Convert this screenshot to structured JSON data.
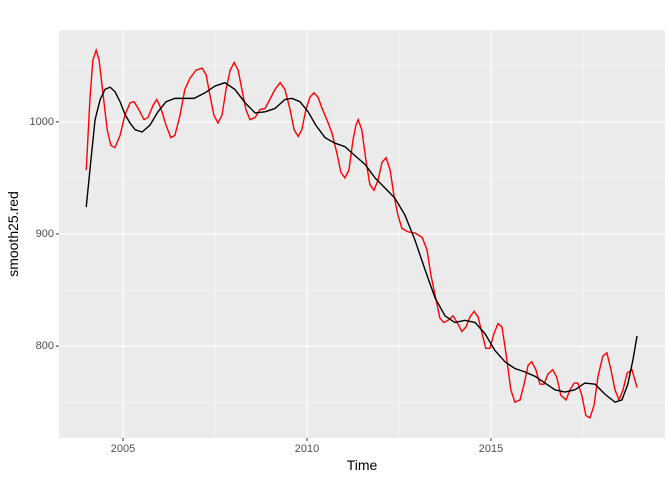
{
  "chart_data": {
    "type": "line",
    "x_label": "Time",
    "y_label": "smooth25.red",
    "xlim": [
      2003.26,
      2019.73
    ],
    "ylim": [
      718,
      1082
    ],
    "xticks": [
      2005,
      2010,
      2015
    ],
    "yticks": [
      800,
      900,
      1000
    ],
    "x_minor_ticks": [
      2002.5,
      2007.5,
      2012.5,
      2017.5
    ],
    "y_minor_ticks": [
      750,
      850,
      950,
      1050
    ],
    "grid": true,
    "background": "#ebebeb",
    "series": [
      {
        "color": "#ff0000",
        "x": [
          2004.0,
          2004.1,
          2004.18,
          2004.27,
          2004.35,
          2004.46,
          2004.57,
          2004.67,
          2004.78,
          2004.92,
          2005.05,
          2005.19,
          2005.3,
          2005.43,
          2005.57,
          2005.68,
          2005.82,
          2005.92,
          2006.03,
          2006.17,
          2006.3,
          2006.41,
          2006.55,
          2006.68,
          2006.82,
          2006.98,
          2007.15,
          2007.26,
          2007.36,
          2007.47,
          2007.58,
          2007.69,
          2007.8,
          2007.91,
          2008.02,
          2008.13,
          2008.23,
          2008.34,
          2008.45,
          2008.59,
          2008.72,
          2008.86,
          2008.99,
          2009.13,
          2009.27,
          2009.4,
          2009.54,
          2009.65,
          2009.76,
          2009.86,
          2009.97,
          2010.08,
          2010.19,
          2010.3,
          2010.41,
          2010.54,
          2010.68,
          2010.82,
          2010.92,
          2011.03,
          2011.14,
          2011.25,
          2011.33,
          2011.39,
          2011.49,
          2011.6,
          2011.71,
          2011.82,
          2011.93,
          2012.04,
          2012.15,
          2012.26,
          2012.36,
          2012.47,
          2012.58,
          2012.74,
          2012.93,
          2013.13,
          2013.26,
          2013.37,
          2013.51,
          2013.61,
          2013.72,
          2013.83,
          2013.97,
          2014.08,
          2014.21,
          2014.32,
          2014.43,
          2014.54,
          2014.65,
          2014.76,
          2014.86,
          2014.97,
          2015.08,
          2015.19,
          2015.3,
          2015.41,
          2015.54,
          2015.65,
          2015.79,
          2015.9,
          2016.01,
          2016.11,
          2016.22,
          2016.33,
          2016.44,
          2016.55,
          2016.68,
          2016.79,
          2016.9,
          2017.04,
          2017.15,
          2017.26,
          2017.36,
          2017.47,
          2017.58,
          2017.69,
          2017.8,
          2017.91,
          2018.04,
          2018.15,
          2018.26,
          2018.37,
          2018.48,
          2018.59,
          2018.7,
          2018.83,
          2018.97
        ],
        "values": [
          957,
          1020,
          1055,
          1064,
          1055,
          1024,
          993,
          979,
          977,
          988,
          1006,
          1017,
          1018,
          1011,
          1002,
          1004,
          1015,
          1020,
          1012,
          997,
          986,
          988,
          1006,
          1029,
          1039,
          1046,
          1048,
          1042,
          1024,
          1006,
          999,
          1006,
          1029,
          1046,
          1053,
          1046,
          1029,
          1011,
          1002,
          1004,
          1011,
          1012,
          1020,
          1029,
          1035,
          1029,
          1011,
          993,
          987,
          993,
          1011,
          1022,
          1026,
          1022,
          1012,
          1002,
          990,
          971,
          955,
          950,
          957,
          984,
          997,
          1002,
          993,
          966,
          944,
          939,
          948,
          964,
          968,
          957,
          935,
          917,
          905,
          902,
          901,
          897,
          886,
          863,
          841,
          825,
          821,
          823,
          827,
          821,
          813,
          817,
          826,
          831,
          826,
          811,
          798,
          798,
          811,
          820,
          817,
          793,
          761,
          750,
          752,
          766,
          783,
          786,
          779,
          766,
          766,
          775,
          779,
          772,
          756,
          752,
          761,
          767,
          767,
          756,
          738,
          736,
          747,
          773,
          791,
          794,
          779,
          761,
          752,
          761,
          776,
          779,
          763
        ]
      },
      {
        "color": "#000000",
        "x": [
          2004.0,
          2004.1,
          2004.24,
          2004.38,
          2004.51,
          2004.65,
          2004.78,
          2004.92,
          2005.05,
          2005.19,
          2005.33,
          2005.52,
          2005.73,
          2005.95,
          2006.17,
          2006.41,
          2006.68,
          2006.93,
          2007.23,
          2007.5,
          2007.77,
          2008.04,
          2008.32,
          2008.59,
          2008.86,
          2009.13,
          2009.4,
          2009.59,
          2009.81,
          2010.03,
          2010.24,
          2010.49,
          2010.76,
          2011.03,
          2011.3,
          2011.58,
          2011.85,
          2012.12,
          2012.39,
          2012.66,
          2012.93,
          2013.21,
          2013.48,
          2013.75,
          2014.02,
          2014.29,
          2014.57,
          2014.84,
          2015.11,
          2015.38,
          2015.65,
          2015.92,
          2016.2,
          2016.47,
          2016.74,
          2017.01,
          2017.28,
          2017.55,
          2017.83,
          2018.1,
          2018.37,
          2018.56,
          2018.72,
          2018.86,
          2018.97
        ],
        "values": [
          924,
          957,
          1002,
          1020,
          1029,
          1031,
          1027,
          1018,
          1007,
          999,
          993,
          991,
          997,
          1009,
          1018,
          1021,
          1021,
          1021,
          1026,
          1032,
          1035,
          1029,
          1017,
          1008,
          1009,
          1012,
          1020,
          1021,
          1018,
          1009,
          997,
          986,
          981,
          978,
          970,
          962,
          950,
          941,
          932,
          917,
          895,
          868,
          843,
          827,
          821,
          823,
          821,
          811,
          796,
          786,
          780,
          777,
          773,
          767,
          761,
          759,
          761,
          767,
          766,
          757,
          750,
          752,
          766,
          788,
          809
        ]
      }
    ]
  }
}
